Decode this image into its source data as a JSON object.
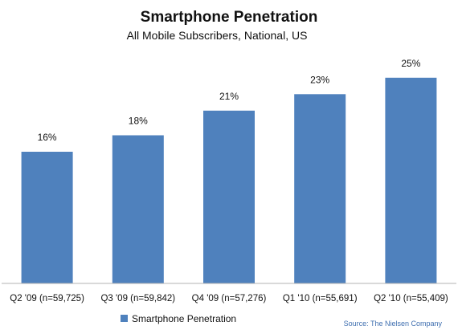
{
  "chart_data": {
    "type": "bar",
    "title": "Smartphone Penetration",
    "subtitle": "All Mobile Subscribers, National, US",
    "categories": [
      "Q2 '09 (n=59,725)",
      "Q3 '09 (n=59,842)",
      "Q4 '09 (n=57,276)",
      "Q1 '10 (n=55,691)",
      "Q2 '10 (n=55,409)"
    ],
    "series": [
      {
        "name": "Smartphone Penetration",
        "values": [
          16,
          18,
          21,
          23,
          25
        ],
        "labels": [
          "16%",
          "18%",
          "21%",
          "23%",
          "25%"
        ],
        "color": "#4f81bd"
      }
    ],
    "xlabel": "",
    "ylabel": "",
    "ylim": [
      0,
      28
    ],
    "grid": false,
    "legend": "bottom",
    "source": "Source: The Nielsen Company",
    "colors": {
      "bar": "#4f81bd",
      "axis": "#b3b3b3",
      "source": "#3f6fb0"
    }
  }
}
